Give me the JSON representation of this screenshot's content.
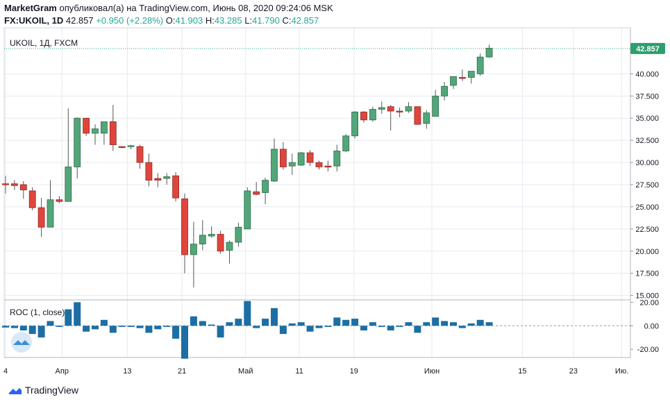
{
  "header": {
    "publisher": "MarketGram",
    "published_text": " опубликовал(а) на TradingView.com, Июнь 08, 2020 09:24:06 MSK",
    "symbol_label": "FX:UKOIL, 1D",
    "price": "42.857",
    "change": "+0.950 (+2.28%)",
    "o_label": "O:",
    "o_value": "41.903",
    "h_label": "H:",
    "h_value": "43.285",
    "l_label": "L:",
    "l_value": "41.790",
    "c_label": "C:",
    "c_value": "42.857"
  },
  "pane_title": "UKOIL, 1Д, FXCM",
  "roc_title": "ROC (1, close)",
  "footer": {
    "brand": "TradingView"
  },
  "colors": {
    "up": "#26a69a",
    "up_fill": "#53a679",
    "down": "#e0453d",
    "roc": "#1c6ea4",
    "grid": "#e6e9f0",
    "axis": "#9598a1",
    "last_price_bg": "#2e9e6e"
  },
  "chart_data": {
    "type": "candlestick",
    "price_axis_ticks": [
      "15.000",
      "17.500",
      "20.000",
      "22.500",
      "25.000",
      "27.500",
      "30.000",
      "32.500",
      "35.000",
      "37.500",
      "40.000"
    ],
    "last_price_label": "42.857",
    "ylim": [
      14.5,
      45.2
    ],
    "roc_axis_ticks": [
      "20.00",
      "0.00",
      "-20.00"
    ],
    "roc_ylim": [
      -27,
      22
    ],
    "x_tick_labels": [
      "4",
      "Апр",
      "13",
      "21",
      "Май",
      "11",
      "19",
      "Июн",
      "15",
      "23",
      "Ию."
    ],
    "candles": [
      {
        "o": 27.6,
        "h": 28.5,
        "l": 26.5,
        "c": 27.5
      },
      {
        "o": 27.6,
        "h": 28.0,
        "l": 26.9,
        "c": 27.4
      },
      {
        "o": 27.5,
        "h": 27.9,
        "l": 25.9,
        "c": 26.9
      },
      {
        "o": 26.8,
        "h": 27.2,
        "l": 24.6,
        "c": 24.9
      },
      {
        "o": 24.9,
        "h": 26.0,
        "l": 21.6,
        "c": 22.7
      },
      {
        "o": 22.7,
        "h": 28.0,
        "l": 22.7,
        "c": 25.8
      },
      {
        "o": 25.8,
        "h": 26.2,
        "l": 25.4,
        "c": 25.6
      },
      {
        "o": 25.6,
        "h": 36.1,
        "l": 25.6,
        "c": 29.5
      },
      {
        "o": 29.5,
        "h": 35.1,
        "l": 28.2,
        "c": 35.0
      },
      {
        "o": 35.0,
        "h": 35.0,
        "l": 33.0,
        "c": 33.3
      },
      {
        "o": 33.3,
        "h": 34.3,
        "l": 32.0,
        "c": 33.8
      },
      {
        "o": 33.3,
        "h": 34.3,
        "l": 32.0,
        "c": 34.6
      },
      {
        "o": 34.6,
        "h": 36.5,
        "l": 31.3,
        "c": 32.0
      },
      {
        "o": 31.8,
        "h": 31.8,
        "l": 31.6,
        "c": 31.7
      },
      {
        "o": 31.8,
        "h": 32.0,
        "l": 31.5,
        "c": 31.9
      },
      {
        "o": 31.8,
        "h": 32.0,
        "l": 29.3,
        "c": 30.0
      },
      {
        "o": 30.0,
        "h": 31.0,
        "l": 27.3,
        "c": 28.0
      },
      {
        "o": 28.2,
        "h": 28.8,
        "l": 27.2,
        "c": 28.0
      },
      {
        "o": 28.2,
        "h": 28.8,
        "l": 27.5,
        "c": 28.4
      },
      {
        "o": 28.5,
        "h": 28.9,
        "l": 25.6,
        "c": 26.0
      },
      {
        "o": 25.9,
        "h": 26.5,
        "l": 17.5,
        "c": 19.6
      },
      {
        "o": 19.6,
        "h": 23.3,
        "l": 15.9,
        "c": 20.8
      },
      {
        "o": 20.8,
        "h": 23.5,
        "l": 20.1,
        "c": 21.8
      },
      {
        "o": 21.7,
        "h": 22.8,
        "l": 21.5,
        "c": 21.9
      },
      {
        "o": 21.9,
        "h": 22.3,
        "l": 19.7,
        "c": 20.0
      },
      {
        "o": 20.1,
        "h": 21.2,
        "l": 18.6,
        "c": 21.0
      },
      {
        "o": 21.0,
        "h": 23.2,
        "l": 20.5,
        "c": 22.7
      },
      {
        "o": 22.5,
        "h": 27.2,
        "l": 22.5,
        "c": 26.8
      },
      {
        "o": 26.7,
        "h": 27.8,
        "l": 26.3,
        "c": 26.4
      },
      {
        "o": 26.6,
        "h": 28.3,
        "l": 25.3,
        "c": 28.0
      },
      {
        "o": 27.9,
        "h": 32.7,
        "l": 27.8,
        "c": 31.5
      },
      {
        "o": 31.5,
        "h": 32.3,
        "l": 29.2,
        "c": 29.5
      },
      {
        "o": 29.6,
        "h": 31.0,
        "l": 28.6,
        "c": 30.0
      },
      {
        "o": 29.7,
        "h": 31.2,
        "l": 29.6,
        "c": 31.1
      },
      {
        "o": 31.1,
        "h": 31.4,
        "l": 29.6,
        "c": 30.0
      },
      {
        "o": 30.0,
        "h": 30.2,
        "l": 29.2,
        "c": 29.5
      },
      {
        "o": 29.6,
        "h": 30.2,
        "l": 29.0,
        "c": 29.5
      },
      {
        "o": 29.6,
        "h": 32.0,
        "l": 29.0,
        "c": 31.3
      },
      {
        "o": 31.3,
        "h": 33.2,
        "l": 31.2,
        "c": 33.0
      },
      {
        "o": 33.0,
        "h": 35.8,
        "l": 32.7,
        "c": 35.7
      },
      {
        "o": 35.7,
        "h": 35.8,
        "l": 34.5,
        "c": 34.8
      },
      {
        "o": 34.8,
        "h": 36.3,
        "l": 34.6,
        "c": 36.0
      },
      {
        "o": 36.0,
        "h": 36.9,
        "l": 35.5,
        "c": 36.2
      },
      {
        "o": 36.3,
        "h": 36.5,
        "l": 33.6,
        "c": 35.8
      },
      {
        "o": 35.8,
        "h": 36.2,
        "l": 35.1,
        "c": 35.7
      },
      {
        "o": 35.8,
        "h": 36.8,
        "l": 35.6,
        "c": 36.3
      },
      {
        "o": 36.3,
        "h": 36.3,
        "l": 34.3,
        "c": 34.3
      },
      {
        "o": 34.4,
        "h": 35.9,
        "l": 33.8,
        "c": 35.6
      },
      {
        "o": 35.2,
        "h": 38.2,
        "l": 35.2,
        "c": 37.5
      },
      {
        "o": 37.5,
        "h": 39.1,
        "l": 37.0,
        "c": 38.6
      },
      {
        "o": 38.7,
        "h": 39.5,
        "l": 38.3,
        "c": 39.7
      },
      {
        "o": 39.6,
        "h": 40.5,
        "l": 39.2,
        "c": 39.5
      },
      {
        "o": 39.6,
        "h": 40.0,
        "l": 38.9,
        "c": 40.3
      },
      {
        "o": 40.0,
        "h": 42.3,
        "l": 39.8,
        "c": 41.9
      },
      {
        "o": 41.9,
        "h": 43.3,
        "l": 41.8,
        "c": 42.9
      }
    ],
    "roc": [
      -1.5,
      -2,
      -4,
      -7,
      -10,
      4,
      -1,
      14,
      20,
      -5,
      -3,
      5,
      -6,
      -1,
      -1,
      -2,
      -6,
      -3,
      -1,
      -11,
      -28,
      8,
      4,
      1,
      -10,
      3,
      6,
      21,
      -2,
      6,
      15,
      -7,
      2,
      3,
      -5,
      -2,
      -1,
      7,
      5,
      6,
      -4,
      3,
      -1,
      -4,
      -1,
      3,
      -6,
      3,
      7,
      4,
      3,
      -2,
      2,
      5,
      3
    ]
  }
}
